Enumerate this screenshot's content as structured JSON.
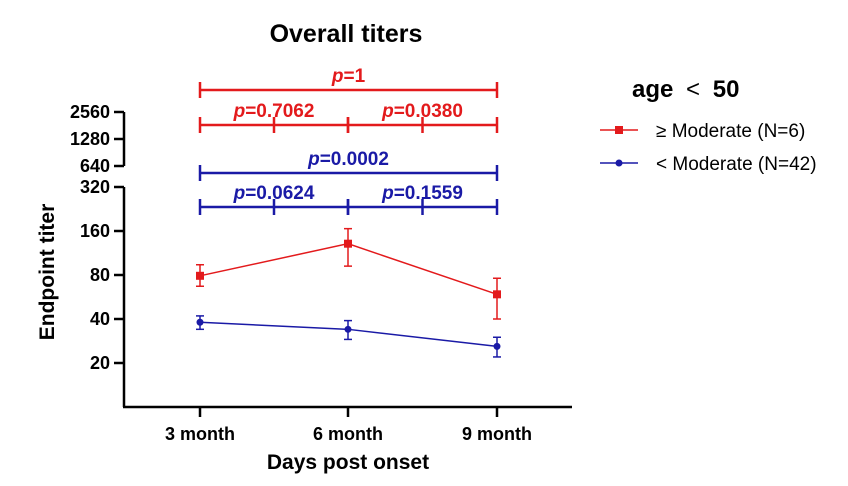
{
  "chart_data": {
    "type": "line",
    "title": "Overall titers",
    "xlabel": "Days post onset",
    "ylabel": "Endpoint titer",
    "yscale": "log2",
    "categories": [
      "3 month",
      "6 month",
      "9 month"
    ],
    "lower_axis": {
      "ylim": [
        10,
        320
      ],
      "ticks": [
        20,
        40,
        80,
        160,
        320
      ]
    },
    "upper_axis": {
      "ylim": [
        640,
        2560
      ],
      "ticks": [
        640,
        1280,
        2560
      ]
    },
    "series": [
      {
        "name": "≥ Moderate (N=6)",
        "color": "#e31a1c",
        "marker": "square",
        "values": [
          79,
          131,
          59
        ],
        "error_low": [
          67,
          92,
          40
        ],
        "error_high": [
          94,
          166,
          76
        ]
      },
      {
        "name": "< Moderate (N=42)",
        "color": "#1a1aa6",
        "marker": "circle",
        "values": [
          38,
          34,
          26
        ],
        "error_low": [
          34,
          29,
          22
        ],
        "error_high": [
          42,
          39,
          30
        ]
      }
    ],
    "legend": {
      "title_prefix": "age",
      "title_symbol": "<",
      "title_value": "50",
      "position": "right"
    },
    "annotations": [
      {
        "group": "≥ Moderate",
        "color": "#e31a1c",
        "from": 0,
        "to": 2,
        "p_symbol": "p",
        "p_value": "=1"
      },
      {
        "group": "≥ Moderate",
        "color": "#e31a1c",
        "from": 0,
        "to": 1,
        "p_symbol": "p",
        "p_value": "=0.7062"
      },
      {
        "group": "≥ Moderate",
        "color": "#e31a1c",
        "from": 1,
        "to": 2,
        "p_symbol": "p",
        "p_value": "=0.0380"
      },
      {
        "group": "< Moderate",
        "color": "#1a1aa6",
        "from": 0,
        "to": 2,
        "p_symbol": "p",
        "p_value": "=0.0002"
      },
      {
        "group": "< Moderate",
        "color": "#1a1aa6",
        "from": 0,
        "to": 1,
        "p_symbol": "p",
        "p_value": "=0.0624"
      },
      {
        "group": "< Moderate",
        "color": "#1a1aa6",
        "from": 1,
        "to": 2,
        "p_symbol": "p",
        "p_value": "=0.1559"
      }
    ]
  }
}
